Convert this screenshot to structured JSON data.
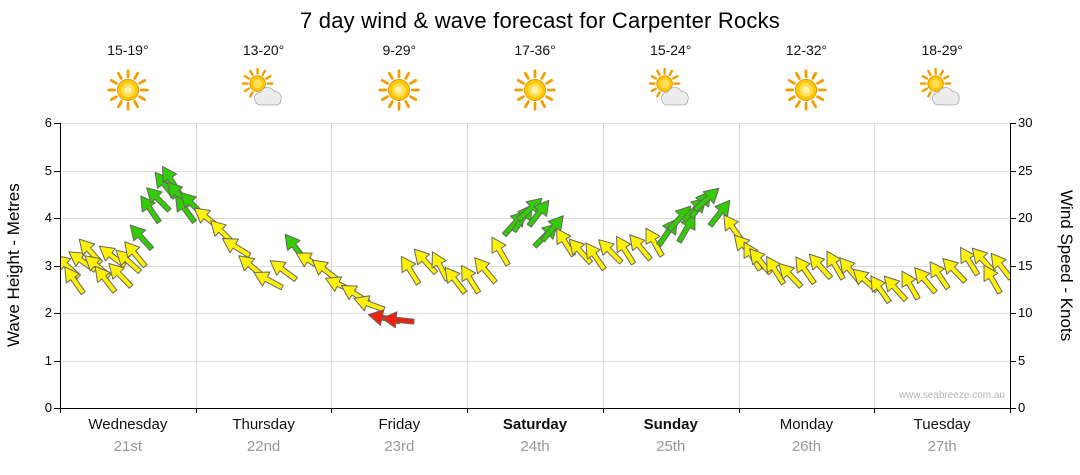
{
  "title": "7 day wind & wave forecast for Carpenter Rocks",
  "watermark": "www.seabreeze.com.au",
  "days": [
    {
      "name": "Wednesday",
      "date": "21st",
      "temp": "15-19°",
      "icon": "sunny",
      "bold": false
    },
    {
      "name": "Thursday",
      "date": "22nd",
      "temp": "13-20°",
      "icon": "partly-cloudy",
      "bold": false
    },
    {
      "name": "Friday",
      "date": "23rd",
      "temp": "9-29°",
      "icon": "sunny",
      "bold": false
    },
    {
      "name": "Saturday",
      "date": "24th",
      "temp": "17-36°",
      "icon": "sunny",
      "bold": true
    },
    {
      "name": "Sunday",
      "date": "25th",
      "temp": "15-24°",
      "icon": "partly-cloudy",
      "bold": true
    },
    {
      "name": "Monday",
      "date": "26th",
      "temp": "12-32°",
      "icon": "sunny",
      "bold": false
    },
    {
      "name": "Tuesday",
      "date": "27th",
      "temp": "18-29°",
      "icon": "partly-cloudy",
      "bold": false
    }
  ],
  "axes": {
    "left_label": "Wave Height - Metres",
    "right_label": "Wind Speed - Knots",
    "left_ticks": [
      "0",
      "1",
      "2",
      "3",
      "4",
      "5",
      "6"
    ],
    "right_ticks": [
      "0",
      "5",
      "10",
      "15",
      "20",
      "25",
      "30"
    ],
    "left_max": 6,
    "right_max": 30
  },
  "colors": {
    "y": "#FFF200",
    "g": "#33CC00",
    "r": "#EE2211",
    "outline": "#666666",
    "grid": "#d9d9d9",
    "axis": "#000000"
  },
  "chart_data": {
    "type": "scatter",
    "subtype": "wind-direction-arrow-band",
    "title": "7 day wind & wave forecast for Carpenter Rocks",
    "x_categories": [
      "Wednesday 21st",
      "Thursday 22nd",
      "Friday 23rd",
      "Saturday 24th",
      "Sunday 25th",
      "Monday 26th",
      "Tuesday 27th"
    ],
    "x_range_days": [
      0,
      7
    ],
    "y_left_axis": {
      "label": "Wave Height - Metres",
      "range": [
        0,
        6
      ],
      "ticks": [
        0,
        1,
        2,
        3,
        4,
        5,
        6
      ]
    },
    "y_right_axis": {
      "label": "Wind Speed - Knots",
      "range": [
        0,
        30
      ],
      "ticks": [
        0,
        5,
        10,
        15,
        20,
        25,
        30
      ]
    },
    "grid": true,
    "legend": "none",
    "point_format": [
      "day_offset_0to7",
      "wind_speed_knots",
      "arrow_rotation_deg_cw_from_east",
      "color_key"
    ],
    "points": [
      [
        0.05,
        15,
        222,
        "y"
      ],
      [
        0.1,
        13.5,
        235,
        "y"
      ],
      [
        0.16,
        15.5,
        215,
        "y"
      ],
      [
        0.22,
        16.5,
        228,
        "y"
      ],
      [
        0.27,
        15,
        220,
        "y"
      ],
      [
        0.33,
        13.6,
        232,
        "y"
      ],
      [
        0.38,
        16,
        218,
        "y"
      ],
      [
        0.44,
        14,
        226,
        "y"
      ],
      [
        0.5,
        15.5,
        222,
        "y"
      ],
      [
        0.55,
        16.2,
        230,
        "y"
      ],
      [
        0.6,
        18,
        228,
        "g"
      ],
      [
        0.66,
        21,
        235,
        "g"
      ],
      [
        0.72,
        22,
        225,
        "g"
      ],
      [
        0.77,
        23.5,
        232,
        "g"
      ],
      [
        0.82,
        24,
        238,
        "g"
      ],
      [
        0.87,
        22.5,
        228,
        "g"
      ],
      [
        0.92,
        21,
        234,
        "g"
      ],
      [
        0.97,
        21.5,
        226,
        "g"
      ],
      [
        1.08,
        20,
        218,
        "y"
      ],
      [
        1.19,
        18.5,
        225,
        "y"
      ],
      [
        1.3,
        17,
        212,
        "y"
      ],
      [
        1.41,
        15,
        220,
        "y"
      ],
      [
        1.53,
        13.5,
        208,
        "y"
      ],
      [
        1.64,
        14.5,
        216,
        "y"
      ],
      [
        1.73,
        17,
        232,
        "g"
      ],
      [
        1.84,
        15.5,
        210,
        "y"
      ],
      [
        1.95,
        14.5,
        218,
        "y"
      ],
      [
        2.06,
        13,
        205,
        "y"
      ],
      [
        2.17,
        12,
        212,
        "y"
      ],
      [
        2.28,
        11,
        200,
        "y"
      ],
      [
        2.39,
        9.5,
        192,
        "r"
      ],
      [
        2.49,
        9.3,
        186,
        "r"
      ],
      [
        2.58,
        14.5,
        238,
        "y"
      ],
      [
        2.69,
        15.5,
        228,
        "y"
      ],
      [
        2.8,
        15,
        242,
        "y"
      ],
      [
        2.91,
        13.5,
        232,
        "y"
      ],
      [
        3.02,
        13.6,
        238,
        "y"
      ],
      [
        3.13,
        14.5,
        230,
        "y"
      ],
      [
        3.24,
        16.5,
        240,
        "y"
      ],
      [
        3.35,
        19.5,
        312,
        "g"
      ],
      [
        3.41,
        20,
        305,
        "g"
      ],
      [
        3.46,
        21,
        318,
        "g"
      ],
      [
        3.53,
        20.5,
        308,
        "g"
      ],
      [
        3.58,
        18.2,
        315,
        "g"
      ],
      [
        3.63,
        19,
        310,
        "g"
      ],
      [
        3.72,
        17.5,
        238,
        "y"
      ],
      [
        3.83,
        16.5,
        228,
        "y"
      ],
      [
        3.94,
        16,
        235,
        "y"
      ],
      [
        4.05,
        16.5,
        225,
        "y"
      ],
      [
        4.16,
        16.6,
        238,
        "y"
      ],
      [
        4.27,
        17,
        230,
        "y"
      ],
      [
        4.38,
        17.5,
        240,
        "y"
      ],
      [
        4.48,
        18.5,
        305,
        "g"
      ],
      [
        4.57,
        20,
        312,
        "g"
      ],
      [
        4.62,
        19,
        300,
        "g"
      ],
      [
        4.68,
        21,
        315,
        "g"
      ],
      [
        4.72,
        21.5,
        306,
        "g"
      ],
      [
        4.77,
        22,
        318,
        "g"
      ],
      [
        4.86,
        20.5,
        308,
        "g"
      ],
      [
        4.96,
        19,
        235,
        "y"
      ],
      [
        5.05,
        17,
        228,
        "y"
      ],
      [
        5.1,
        16,
        240,
        "y"
      ],
      [
        5.16,
        15.5,
        230,
        "y"
      ],
      [
        5.27,
        14.5,
        238,
        "y"
      ],
      [
        5.38,
        14,
        226,
        "y"
      ],
      [
        5.49,
        14.5,
        235,
        "y"
      ],
      [
        5.6,
        15,
        228,
        "y"
      ],
      [
        5.71,
        15.1,
        240,
        "y"
      ],
      [
        5.82,
        14.5,
        230,
        "y"
      ],
      [
        5.93,
        13.5,
        222,
        "y"
      ],
      [
        6.04,
        12.5,
        235,
        "y"
      ],
      [
        6.15,
        12.6,
        228,
        "y"
      ],
      [
        6.26,
        13,
        240,
        "y"
      ],
      [
        6.37,
        13.5,
        230,
        "y"
      ],
      [
        6.48,
        14,
        236,
        "y"
      ],
      [
        6.59,
        14.5,
        226,
        "y"
      ],
      [
        6.7,
        15.5,
        238,
        "y"
      ],
      [
        6.8,
        15.6,
        228,
        "y"
      ],
      [
        6.87,
        13.6,
        240,
        "y"
      ],
      [
        6.93,
        15,
        232,
        "y"
      ]
    ]
  }
}
